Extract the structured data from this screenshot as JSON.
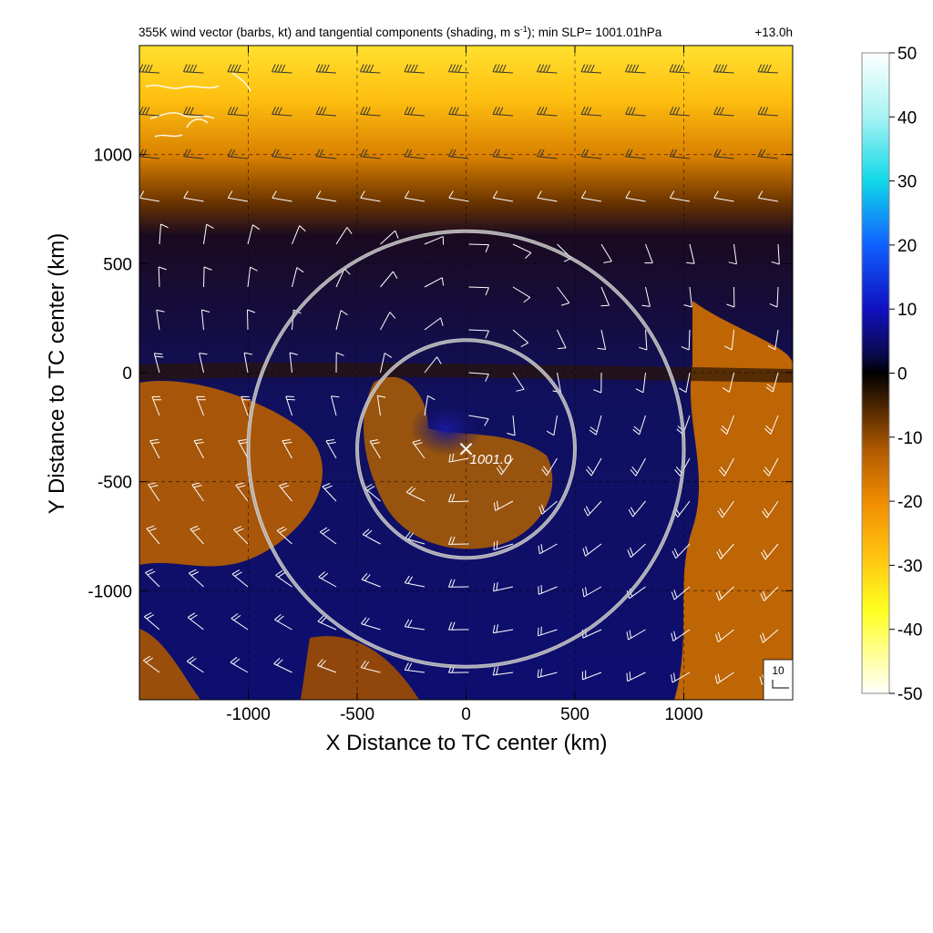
{
  "chart_data": {
    "type": "heatmap",
    "title": {
      "part1": "355K wind vector (barbs, kt) and tangential components (shading, m s",
      "sup": "-1",
      "part2": "); min SLP= 1001.01hPa",
      "time": "+13.0h"
    },
    "xlabel": "X Distance to TC center (km)",
    "ylabel": "Y Distance to TC center (km)",
    "xlim": [
      -1500,
      1500
    ],
    "ylim": [
      -1500,
      1500
    ],
    "xticks": [
      -1000,
      -500,
      0,
      500,
      1000
    ],
    "yticks": [
      1000,
      500,
      0,
      -500,
      -1000
    ],
    "xtick_labels": [
      "-1000",
      "-500",
      "0",
      "500",
      "1000"
    ],
    "ytick_labels": [
      "1000",
      "500",
      "0",
      "-500",
      "-1000"
    ],
    "grid": true,
    "colorbar": {
      "min": -50,
      "max": 50,
      "ticks": [
        "50",
        "40",
        "30",
        "20",
        "10",
        "0",
        "-10",
        "-20",
        "-30",
        "-40",
        "-50"
      ],
      "stops": [
        "#ffffff",
        "#ffff20",
        "#ffc010",
        "#f08000",
        "#7a3b00",
        "#000000",
        "#0a0a60",
        "#1010c0",
        "#1060ff",
        "#10d8e8",
        "#ffffff"
      ]
    },
    "tc_center": {
      "x": 0,
      "y": -350,
      "label": "1001.0",
      "marker": "x-icon"
    },
    "range_circles_km": [
      500,
      1000
    ],
    "reference_barb": {
      "label": "10",
      "speed_kt": 10
    },
    "annotations": [
      "coastline outline (white) in upper-left corner"
    ]
  }
}
